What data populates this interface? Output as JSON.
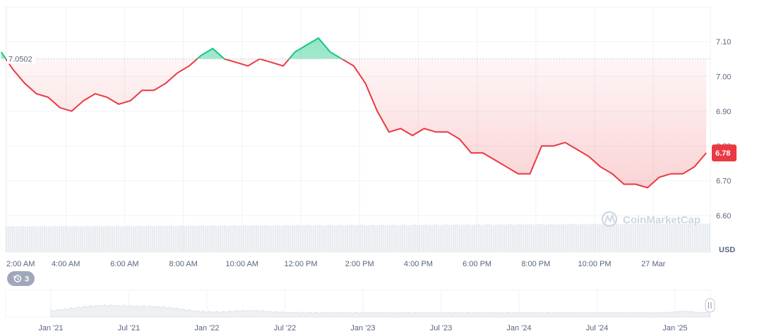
{
  "chart_data": {
    "type": "area",
    "reference_value": 7.0502,
    "reference_label": "7.0502",
    "current_value": 6.78,
    "current_label": "6.78",
    "unit_label": "USD",
    "ylim": [
      6.57,
      7.17
    ],
    "y_ticks": [
      {
        "value": 7.1,
        "label": "7.10"
      },
      {
        "value": 7.0,
        "label": "7.00"
      },
      {
        "value": 6.9,
        "label": "6.90"
      },
      {
        "value": 6.8,
        "label": "6.80"
      },
      {
        "value": 6.7,
        "label": "6.70"
      },
      {
        "value": 6.6,
        "label": "6.60"
      }
    ],
    "x_ticks": [
      {
        "hour": 2,
        "label": "2:00 AM"
      },
      {
        "hour": 4,
        "label": "4:00 AM"
      },
      {
        "hour": 6,
        "label": "6:00 AM"
      },
      {
        "hour": 8,
        "label": "8:00 AM"
      },
      {
        "hour": 10,
        "label": "10:00 AM"
      },
      {
        "hour": 12,
        "label": "12:00 PM"
      },
      {
        "hour": 14,
        "label": "2:00 PM"
      },
      {
        "hour": 16,
        "label": "4:00 PM"
      },
      {
        "hour": 18,
        "label": "6:00 PM"
      },
      {
        "hour": 20,
        "label": "8:00 PM"
      },
      {
        "hour": 22,
        "label": "10:00 PM"
      },
      {
        "hour": 24,
        "label": "27 Mar"
      }
    ],
    "series": [
      {
        "x_hours": [
          1.8,
          2.2,
          2.6,
          3.0,
          3.4,
          3.8,
          4.2,
          4.6,
          5.0,
          5.4,
          5.8,
          6.2,
          6.6,
          7.0,
          7.4,
          7.8,
          8.2,
          8.6,
          9.0,
          9.4,
          9.8,
          10.2,
          10.6,
          11.0,
          11.4,
          11.8,
          12.2,
          12.6,
          13.0,
          13.4,
          13.8,
          14.2,
          14.6,
          15.0,
          15.4,
          15.8,
          16.2,
          16.6,
          17.0,
          17.4,
          17.8,
          18.2,
          18.6,
          19.0,
          19.4,
          19.8,
          20.2,
          20.6,
          21.0,
          21.4,
          21.8,
          22.2,
          22.6,
          23.0,
          23.4,
          23.8,
          24.2,
          24.6,
          25.0,
          25.4,
          25.8
        ],
        "values": [
          7.07,
          7.02,
          6.98,
          6.95,
          6.94,
          6.91,
          6.9,
          6.93,
          6.95,
          6.94,
          6.92,
          6.93,
          6.96,
          6.96,
          6.98,
          7.01,
          7.03,
          7.06,
          7.08,
          7.05,
          7.04,
          7.03,
          7.05,
          7.04,
          7.03,
          7.07,
          7.09,
          7.11,
          7.07,
          7.05,
          7.03,
          6.98,
          6.9,
          6.84,
          6.85,
          6.83,
          6.85,
          6.84,
          6.84,
          6.82,
          6.78,
          6.78,
          6.76,
          6.74,
          6.72,
          6.72,
          6.8,
          6.8,
          6.81,
          6.79,
          6.77,
          6.74,
          6.72,
          6.69,
          6.69,
          6.68,
          6.71,
          6.72,
          6.72,
          6.74,
          6.78
        ]
      }
    ]
  },
  "navigator": {
    "labels": [
      "Jan '21",
      "Jul '21",
      "Jan '22",
      "Jul '22",
      "Jan '23",
      "Jul '23",
      "Jan '24",
      "Jul '24",
      "Jan '25"
    ]
  },
  "badge": {
    "count": "3",
    "icon": "history-icon"
  },
  "watermark": {
    "text": "CoinMarketCap"
  },
  "colors": {
    "up": "#16c784",
    "down": "#ea3943",
    "grid": "#eff2f5",
    "axis_text": "#58667e",
    "volume": "#e8ebf0"
  }
}
